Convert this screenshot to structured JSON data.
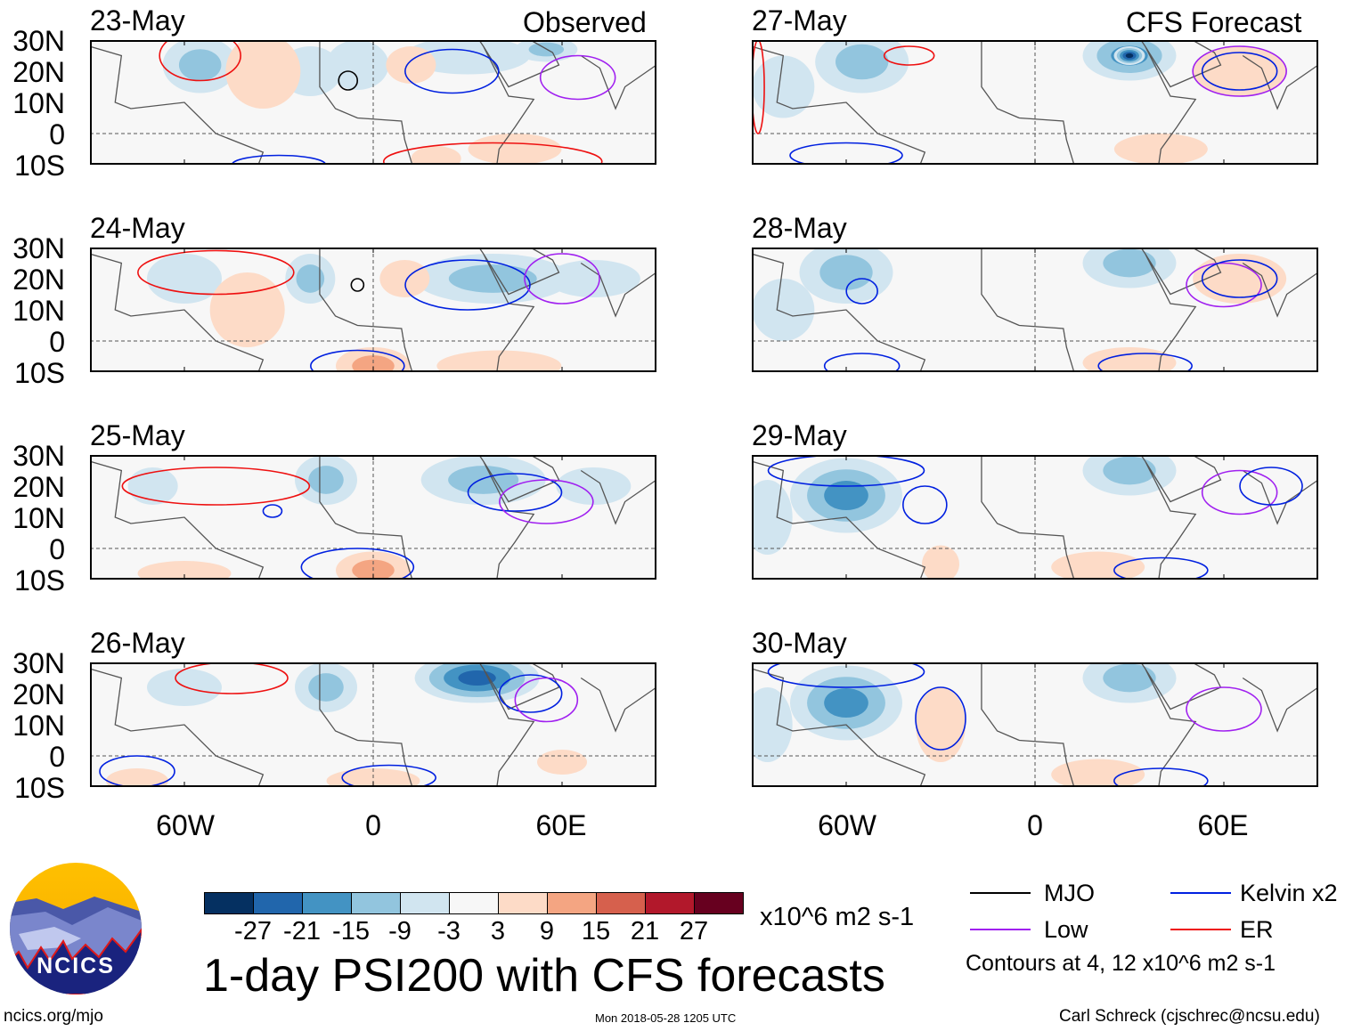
{
  "observed_label": "Observed",
  "forecast_label": "CFS Forecast",
  "lat_labels": [
    "30N",
    "20N",
    "10N",
    "0",
    "10S"
  ],
  "lon_labels": [
    "60W",
    "0",
    "60E"
  ],
  "colorbar": {
    "colors": [
      "#053061",
      "#2166ac",
      "#4393c3",
      "#92c5de",
      "#d1e5f0",
      "#f7f7f7",
      "#fddbc7",
      "#f4a582",
      "#d6604d",
      "#b2182b",
      "#67001f"
    ],
    "labels": [
      "-27",
      "-21",
      "-15",
      "-9",
      "-3",
      "3",
      "9",
      "15",
      "21",
      "27"
    ],
    "units": "x10^6 m2 s-1"
  },
  "title": "1-day PSI200 with CFS forecasts",
  "legend": {
    "items": [
      {
        "label": "MJO",
        "color": "#000000"
      },
      {
        "label": "Kelvin x2",
        "color": "#0020e0"
      },
      {
        "label": "Low",
        "color": "#a020f0"
      },
      {
        "label": "ER",
        "color": "#ee1010"
      }
    ],
    "note": "Contours at 4, 12 x10^6 m2 s-1"
  },
  "logo_text": "NCICS",
  "footer": {
    "site": "ncics.org/mjo",
    "timestamp": "Mon 2018-05-28 1205 UTC",
    "author": "Carl Schreck (cjschrec@ncsu.edu)"
  },
  "chart_data": {
    "type": "heatmap",
    "lon_range": [
      -90,
      90
    ],
    "lat_range": [
      -10,
      30
    ],
    "panels": [
      {
        "date": "23-May",
        "kind": "observed",
        "anoms": [
          [
            -55,
            22,
            12,
            9,
            -12
          ],
          [
            -40,
            22,
            7,
            5,
            -6
          ],
          [
            -20,
            20,
            10,
            8,
            -8
          ],
          [
            -5,
            22,
            10,
            8,
            -8
          ],
          [
            30,
            25,
            20,
            6,
            -6
          ],
          [
            55,
            27,
            10,
            4,
            -10
          ],
          [
            -35,
            20,
            12,
            12,
            6
          ],
          [
            12,
            22,
            8,
            6,
            6
          ],
          [
            45,
            -5,
            15,
            5,
            6
          ],
          [
            20,
            -8,
            8,
            4,
            4
          ]
        ],
        "contours": [
          [
            "MJO",
            -8,
            17,
            3,
            3
          ],
          [
            "ER",
            -55,
            25,
            13,
            8
          ],
          [
            "ER",
            38,
            -9,
            35,
            6
          ],
          [
            "Kelvin",
            25,
            20,
            15,
            7
          ],
          [
            "Kelvin",
            -30,
            -10,
            15,
            3
          ],
          [
            "Low",
            65,
            18,
            12,
            7
          ]
        ]
      },
      {
        "date": "24-May",
        "kind": "observed",
        "anoms": [
          [
            -60,
            20,
            12,
            8,
            -8
          ],
          [
            -20,
            20,
            8,
            8,
            -10
          ],
          [
            38,
            20,
            25,
            8,
            -12
          ],
          [
            70,
            20,
            15,
            6,
            -6
          ],
          [
            -40,
            10,
            12,
            12,
            5
          ],
          [
            0,
            -8,
            12,
            6,
            10
          ],
          [
            10,
            20,
            8,
            6,
            5
          ],
          [
            40,
            -8,
            20,
            5,
            4
          ]
        ],
        "contours": [
          [
            "MJO",
            -5,
            18,
            2,
            2
          ],
          [
            "Kelvin",
            30,
            18,
            20,
            8
          ],
          [
            "ER",
            -50,
            22,
            25,
            7
          ],
          [
            "Kelvin",
            -5,
            -8,
            15,
            5
          ],
          [
            "Low",
            60,
            20,
            12,
            8
          ]
        ]
      },
      {
        "date": "25-May",
        "kind": "observed",
        "anoms": [
          [
            -15,
            22,
            10,
            8,
            -14
          ],
          [
            35,
            22,
            20,
            8,
            -14
          ],
          [
            -70,
            20,
            8,
            6,
            -6
          ],
          [
            70,
            20,
            12,
            6,
            -6
          ],
          [
            0,
            -7,
            12,
            6,
            12
          ],
          [
            -60,
            -8,
            15,
            4,
            5
          ]
        ],
        "contours": [
          [
            "ER",
            -50,
            20,
            30,
            6
          ],
          [
            "Kelvin",
            45,
            18,
            15,
            6
          ],
          [
            "Low",
            55,
            15,
            15,
            7
          ],
          [
            "Kelvin",
            -5,
            -6,
            18,
            6
          ],
          [
            "Kelvin",
            -32,
            12,
            3,
            2
          ]
        ]
      },
      {
        "date": "26-May",
        "kind": "observed",
        "anoms": [
          [
            33,
            25,
            20,
            8,
            -22
          ],
          [
            -15,
            22,
            10,
            8,
            -10
          ],
          [
            -60,
            22,
            12,
            6,
            -8
          ],
          [
            0,
            -8,
            15,
            4,
            8
          ],
          [
            -75,
            -8,
            10,
            4,
            6
          ],
          [
            60,
            -2,
            8,
            4,
            3
          ]
        ],
        "contours": [
          [
            "ER",
            -45,
            25,
            18,
            5
          ],
          [
            "Kelvin",
            50,
            20,
            10,
            6
          ],
          [
            "Low",
            55,
            18,
            10,
            7
          ],
          [
            "Kelvin",
            -75,
            -5,
            12,
            5
          ],
          [
            "Kelvin",
            5,
            -7,
            15,
            4
          ]
        ]
      },
      {
        "date": "27-May",
        "kind": "forecast",
        "anoms": [
          [
            -55,
            23,
            15,
            10,
            -12
          ],
          [
            30,
            25,
            15,
            8,
            -18
          ],
          [
            30,
            25,
            5,
            3,
            -30
          ],
          [
            -80,
            15,
            10,
            10,
            -5
          ],
          [
            65,
            20,
            15,
            8,
            4
          ],
          [
            40,
            -5,
            15,
            5,
            4
          ]
        ],
        "contours": [
          [
            "ER",
            -40,
            25,
            8,
            3
          ],
          [
            "Kelvin",
            -60,
            -7,
            18,
            4
          ],
          [
            "Low",
            65,
            20,
            15,
            8
          ],
          [
            "Kelvin",
            65,
            20,
            12,
            6
          ],
          [
            "ER",
            -88,
            15,
            2,
            15
          ]
        ]
      },
      {
        "date": "28-May",
        "kind": "forecast",
        "anoms": [
          [
            -60,
            22,
            15,
            10,
            -12
          ],
          [
            30,
            25,
            15,
            8,
            -14
          ],
          [
            -80,
            10,
            10,
            10,
            -5
          ],
          [
            65,
            20,
            15,
            8,
            4
          ],
          [
            30,
            -7,
            15,
            5,
            4
          ]
        ],
        "contours": [
          [
            "Kelvin",
            -55,
            16,
            5,
            4
          ],
          [
            "Low",
            60,
            18,
            12,
            7
          ],
          [
            "Kelvin",
            65,
            20,
            12,
            6
          ],
          [
            "Kelvin",
            -55,
            -8,
            12,
            4
          ],
          [
            "Kelvin",
            35,
            -8,
            15,
            4
          ]
        ]
      },
      {
        "date": "29-May",
        "kind": "forecast",
        "anoms": [
          [
            -60,
            17,
            18,
            12,
            -15
          ],
          [
            30,
            25,
            15,
            8,
            -12
          ],
          [
            -85,
            10,
            8,
            12,
            -6
          ],
          [
            20,
            -6,
            15,
            5,
            5
          ],
          [
            -30,
            -5,
            6,
            6,
            3
          ]
        ],
        "contours": [
          [
            "Kelvin",
            -35,
            14,
            7,
            6
          ],
          [
            "Low",
            65,
            18,
            12,
            7
          ],
          [
            "Kelvin",
            75,
            20,
            10,
            6
          ],
          [
            "Kelvin",
            40,
            -7,
            15,
            4
          ],
          [
            "Kelvin",
            -60,
            25,
            25,
            5
          ]
        ]
      },
      {
        "date": "30-May",
        "kind": "forecast",
        "anoms": [
          [
            -60,
            17,
            18,
            12,
            -15
          ],
          [
            30,
            25,
            15,
            8,
            -12
          ],
          [
            -85,
            10,
            8,
            12,
            -6
          ],
          [
            -30,
            10,
            8,
            12,
            6
          ],
          [
            20,
            -6,
            15,
            5,
            5
          ]
        ],
        "contours": [
          [
            "Kelvin",
            -30,
            12,
            8,
            10
          ],
          [
            "Low",
            60,
            15,
            12,
            7
          ],
          [
            "Kelvin",
            -60,
            27,
            25,
            5
          ],
          [
            "Kelvin",
            40,
            -8,
            15,
            4
          ]
        ]
      }
    ]
  }
}
